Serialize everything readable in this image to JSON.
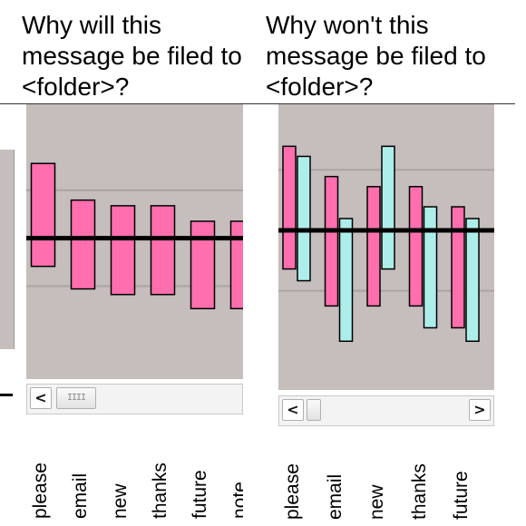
{
  "left_title": "Why will this message be filed to <folder>?",
  "right_title": "Why won't this message be filed to <folder>?",
  "colors": {
    "pink": "#ff6fae",
    "cyan": "#aeeeea",
    "panel_bg": "#c5bebc",
    "gridline": "#a9a3a1",
    "axis": "#000000"
  },
  "chart_data": [
    {
      "type": "bar",
      "title": "",
      "categories": [
        "please",
        "email",
        "new",
        "thanks",
        "future",
        "note"
      ],
      "series": [
        {
          "values": [
            0.53,
            0.27,
            0.23,
            0.23,
            0.12,
            0.12
          ],
          "bottoms": [
            -0.2,
            -0.36,
            -0.4,
            -0.4,
            -0.5,
            -0.5
          ],
          "color": "#ff6fae"
        }
      ],
      "ylim": [
        -1,
        0.95
      ],
      "gridlines": [
        0.34,
        -0.34
      ],
      "xlabel": "",
      "ylabel": ""
    },
    {
      "type": "bar",
      "title": "",
      "categories": [
        "please",
        "email",
        "new",
        "thanks",
        "future"
      ],
      "series": [
        {
          "values": [
            0.5,
            0.32,
            0.26,
            0.26,
            0.14
          ],
          "bottoms": [
            -0.23,
            -0.45,
            -0.45,
            -0.45,
            -0.58
          ],
          "color": "#ff6fae"
        },
        {
          "values": [
            0.44,
            0.07,
            0.5,
            0.14,
            0.07
          ],
          "bottoms": [
            -0.3,
            -0.66,
            -0.23,
            -0.58,
            -0.66
          ],
          "color": "#aeeeea"
        }
      ],
      "ylim": [
        -0.95,
        0.75
      ],
      "gridlines": [
        0.36,
        -0.36
      ],
      "xlabel": "",
      "ylabel": ""
    }
  ],
  "left_labels": [
    "please",
    "email",
    "new",
    "thanks",
    "future",
    "note"
  ],
  "right_labels": [
    "please",
    "email",
    "new",
    "thanks",
    "future"
  ],
  "scroll": {
    "left_arrow": "<",
    "right_arrow": ">",
    "thumb_grip": "IIII"
  }
}
